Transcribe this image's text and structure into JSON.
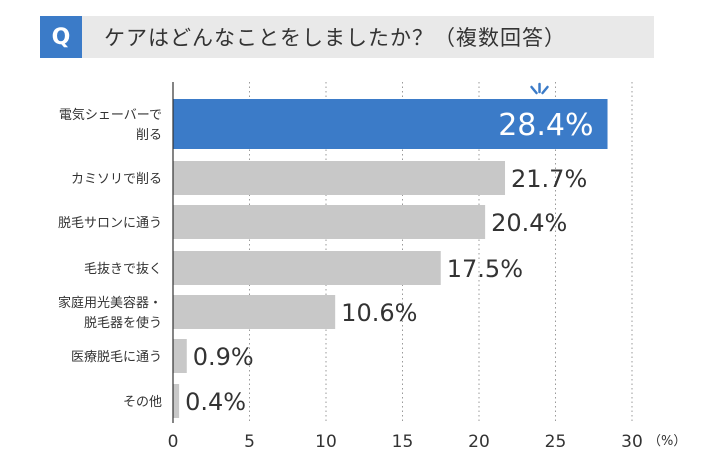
{
  "question": {
    "badge": "Q",
    "text": "ケアはどんなことをしましたか？（複数回答）"
  },
  "colors": {
    "highlight": "#3b7bc8",
    "bar": "#c8c8c8",
    "header_bg": "#e9e9e9"
  },
  "chart_data": {
    "type": "bar",
    "orientation": "horizontal",
    "title": "ケアはどんなことをしましたか？（複数回答）",
    "categories": [
      [
        "電気シェーバーで",
        "削る"
      ],
      [
        "カミソリで削る"
      ],
      [
        "脱毛サロンに通う"
      ],
      [
        "毛抜きで抜く"
      ],
      [
        "家庭用光美容器・",
        "脱毛器を使う"
      ],
      [
        "医療脱毛に通う"
      ],
      [
        "その他"
      ]
    ],
    "values": [
      28.4,
      21.7,
      20.4,
      17.5,
      10.6,
      0.9,
      0.4
    ],
    "value_labels": [
      "28.4%",
      "21.7%",
      "20.4%",
      "17.5%",
      "10.6%",
      "0.9%",
      "0.4%"
    ],
    "highlight_index": 0,
    "xlim": [
      0,
      30
    ],
    "xticks": [
      "0",
      "5",
      "10",
      "15",
      "20",
      "25",
      "30"
    ],
    "xunit": "（%）",
    "grid": "dotted-vertical"
  }
}
